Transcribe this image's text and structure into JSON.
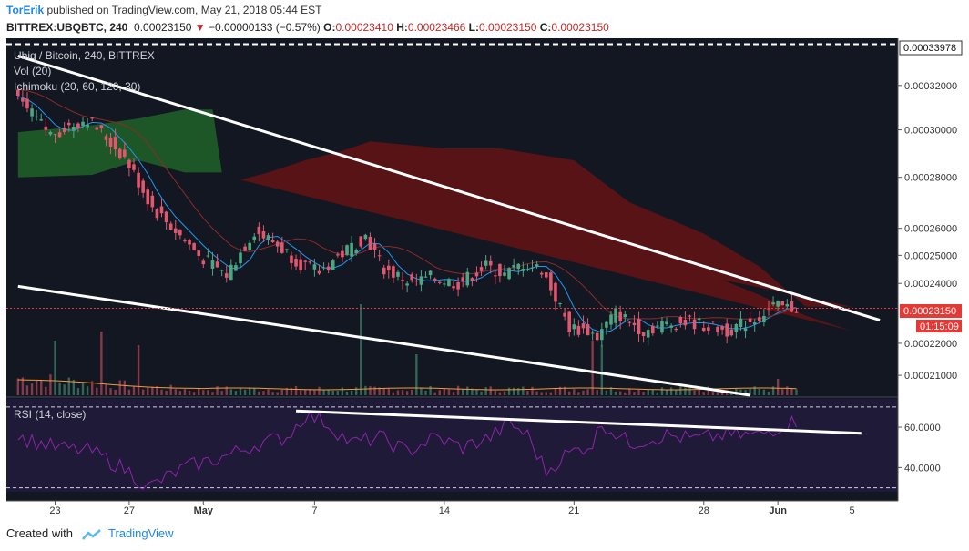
{
  "header": {
    "author": "TorErik",
    "published_text": "published on TradingView.com, May 21, 2018 05:44 EST",
    "symbol": "BITTREX:UBQBTC, 240",
    "last": "0.00023150",
    "change_arrow": "▼",
    "change": "−0.00000133 (−0.57%)",
    "ohlc": [
      {
        "label": "O:",
        "value": "0.00023410"
      },
      {
        "label": "H:",
        "value": "0.00023466"
      },
      {
        "label": "L:",
        "value": "0.00023150"
      },
      {
        "label": "C:",
        "value": "0.00023150"
      }
    ]
  },
  "legend": {
    "title": "Ubiq / Bitcoin, 240, BITTREX",
    "vol": "Vol (20)",
    "ichimoku": "Ichimoku (20, 60, 120, 30)",
    "rsi": "RSI (14, close)"
  },
  "price_axis": {
    "top_label": "0.00033978",
    "current_label": "0.00023150",
    "countdown": "01:15:09"
  },
  "footer": {
    "created_with": "Created with",
    "brand": "TradingView"
  },
  "colors": {
    "background": "#131722",
    "rsi_background": "#1f1a38",
    "up_candle": "#4ca682",
    "down_candle": "#e0576e",
    "cloud_green": "#1f5b28",
    "cloud_red": "#5b1316",
    "trendline": "#ffffff",
    "rsi_line": "#8e24aa",
    "tenkan": "#2196f3",
    "kijun": "#8b2a2a",
    "accent": "#1e88e5"
  },
  "chart_data": [
    {
      "type": "candlestick",
      "title": "Ubiq / Bitcoin, 240, BITTREX",
      "x_ticks": [
        "23",
        "27",
        "May",
        "7",
        "14",
        "21",
        "28",
        "Jun",
        "5"
      ],
      "y_scale": "log",
      "y_ticks": [
        "0.00032000",
        "0.00030000",
        "0.00028000",
        "0.00026000",
        "0.00025000",
        "0.00024000",
        "0.00022000",
        "0.00021000"
      ],
      "ylim": [
        0.000204,
        0.00034
      ],
      "grid": false,
      "current_price": 0.0002315,
      "dashed_high": 0.00033978,
      "price_path": [
        [
          0,
          0.000315
        ],
        [
          4,
          0.000298
        ],
        [
          8,
          0.000305
        ],
        [
          12,
          0.000288
        ],
        [
          15,
          0.000268
        ],
        [
          20,
          0.00025
        ],
        [
          23,
          0.000243
        ],
        [
          26,
          0.000259
        ],
        [
          28,
          0.000255
        ],
        [
          31,
          0.000247
        ],
        [
          33,
          0.000244
        ],
        [
          36,
          0.000252
        ],
        [
          38,
          0.000257
        ],
        [
          40,
          0.000245
        ],
        [
          43,
          0.00024
        ],
        [
          45,
          0.000242
        ],
        [
          48,
          0.00024
        ],
        [
          51,
          0.000246
        ],
        [
          53,
          0.000243
        ],
        [
          55,
          0.000247
        ],
        [
          57,
          0.000245
        ],
        [
          60,
          0.000225
        ],
        [
          62,
          0.000224
        ],
        [
          63,
          0.000222
        ],
        [
          65,
          0.00023
        ],
        [
          68,
          0.000224
        ],
        [
          70,
          0.000226
        ],
        [
          73,
          0.000227
        ],
        [
          77,
          0.000224
        ],
        [
          80,
          0.000228
        ],
        [
          82,
          0.000232
        ],
        [
          84,
          0.0002315
        ]
      ],
      "volume_spikes": [
        [
          4,
          0.6
        ],
        [
          9,
          0.7
        ],
        [
          13,
          0.55
        ],
        [
          37,
          1.0
        ],
        [
          43,
          0.45
        ],
        [
          62,
          0.6
        ],
        [
          63,
          0.55
        ],
        [
          82,
          0.18
        ]
      ],
      "trendlines": [
        {
          "name": "upper",
          "points": [
            [
              0,
              0.000334
            ],
            [
              93,
              0.0002275
            ]
          ]
        },
        {
          "name": "lower",
          "points": [
            [
              0,
              0.000239
            ],
            [
              79,
              0.000204
            ]
          ]
        }
      ]
    },
    {
      "type": "line",
      "title": "RSI (14, close)",
      "y_ticks": [
        "60.0000",
        "40.0000"
      ],
      "ylim": [
        28,
        74
      ],
      "bands": [
        70,
        30
      ],
      "series": [
        {
          "values": [
            [
              0,
              55
            ],
            [
              4,
              50
            ],
            [
              8,
              48
            ],
            [
              12,
              38
            ],
            [
              14,
              30
            ],
            [
              18,
              40
            ],
            [
              22,
              45
            ],
            [
              26,
              52
            ],
            [
              29,
              55
            ],
            [
              31,
              66
            ],
            [
              33,
              63
            ],
            [
              36,
              52
            ],
            [
              39,
              55
            ],
            [
              42,
              48
            ],
            [
              45,
              55
            ],
            [
              48,
              50
            ],
            [
              51,
              55
            ],
            [
              53,
              62
            ],
            [
              55,
              56
            ],
            [
              57,
              38
            ],
            [
              59,
              46
            ],
            [
              62,
              52
            ],
            [
              63,
              62
            ],
            [
              66,
              52
            ],
            [
              70,
              56
            ],
            [
              73,
              54
            ],
            [
              76,
              56
            ],
            [
              80,
              56
            ],
            [
              82,
              60
            ],
            [
              84,
              63
            ]
          ]
        }
      ],
      "trendlines": [
        {
          "name": "rsi-resistance",
          "points": [
            [
              30,
              68
            ],
            [
              91,
              57
            ]
          ]
        }
      ]
    }
  ]
}
